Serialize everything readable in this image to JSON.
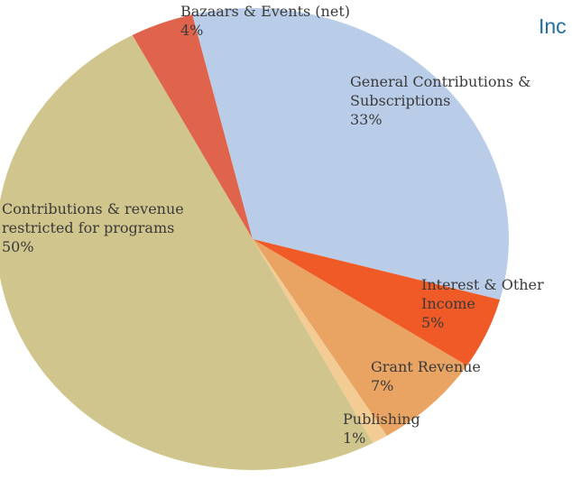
{
  "chart_data": {
    "type": "pie",
    "title": "Inc",
    "categories": [
      "Bazaars & Events (net)",
      "General Contributions & Subscriptions",
      "Interest & Other Income",
      "Grant Revenue",
      "Publishing",
      "Contributions & revenue restricted for programs"
    ],
    "values": [
      4,
      33,
      5,
      7,
      1,
      50
    ],
    "value_labels": [
      "4%",
      "33%",
      "5%",
      "7%",
      "1%",
      "50%"
    ],
    "colors": [
      "#e0644c",
      "#b9cde9",
      "#f05a26",
      "#e9a463",
      "#f3cc93",
      "#d0c58c"
    ]
  }
}
